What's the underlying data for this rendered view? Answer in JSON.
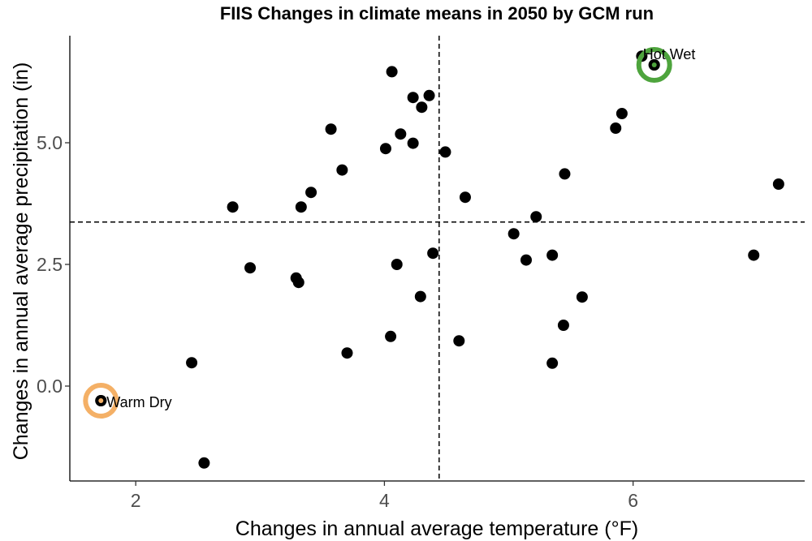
{
  "chart_data": {
    "type": "scatter",
    "title": "FIIS Changes in climate means in 2050 by GCM run",
    "xlabel": "Changes in annual average temperature (°F)",
    "ylabel": "Changes in annual average precipitation (in)",
    "xlim": [
      1.47,
      7.38
    ],
    "ylim": [
      -1.95,
      7.2
    ],
    "x_ticks": [
      2,
      4,
      6
    ],
    "x_tick_labels": [
      "2",
      "4",
      "6"
    ],
    "y_ticks": [
      0,
      2.5,
      5
    ],
    "y_tick_labels": [
      "0.0",
      "2.5",
      "5.0"
    ],
    "grid": false,
    "reference_lines": {
      "x": 4.44,
      "y": 3.37
    },
    "points": [
      {
        "x": 1.72,
        "y": -0.3
      },
      {
        "x": 2.45,
        "y": 0.48
      },
      {
        "x": 2.55,
        "y": -1.58
      },
      {
        "x": 2.78,
        "y": 3.68
      },
      {
        "x": 2.92,
        "y": 2.43
      },
      {
        "x": 3.29,
        "y": 2.22
      },
      {
        "x": 3.31,
        "y": 2.13
      },
      {
        "x": 3.33,
        "y": 3.68
      },
      {
        "x": 3.41,
        "y": 3.98
      },
      {
        "x": 3.57,
        "y": 5.28
      },
      {
        "x": 3.66,
        "y": 4.44
      },
      {
        "x": 3.7,
        "y": 0.68
      },
      {
        "x": 4.01,
        "y": 4.88
      },
      {
        "x": 4.05,
        "y": 1.02
      },
      {
        "x": 4.06,
        "y": 6.46
      },
      {
        "x": 4.1,
        "y": 2.5
      },
      {
        "x": 4.13,
        "y": 5.18
      },
      {
        "x": 4.23,
        "y": 4.99
      },
      {
        "x": 4.23,
        "y": 5.93
      },
      {
        "x": 4.29,
        "y": 1.84
      },
      {
        "x": 4.3,
        "y": 5.73
      },
      {
        "x": 4.36,
        "y": 5.97
      },
      {
        "x": 4.39,
        "y": 2.73
      },
      {
        "x": 4.49,
        "y": 4.81
      },
      {
        "x": 4.6,
        "y": 0.93
      },
      {
        "x": 4.65,
        "y": 3.88
      },
      {
        "x": 5.04,
        "y": 3.13
      },
      {
        "x": 5.14,
        "y": 2.59
      },
      {
        "x": 5.22,
        "y": 3.48
      },
      {
        "x": 5.35,
        "y": 0.47
      },
      {
        "x": 5.35,
        "y": 2.69
      },
      {
        "x": 5.44,
        "y": 1.25
      },
      {
        "x": 5.45,
        "y": 4.36
      },
      {
        "x": 5.59,
        "y": 1.83
      },
      {
        "x": 5.86,
        "y": 5.3
      },
      {
        "x": 5.91,
        "y": 5.6
      },
      {
        "x": 6.07,
        "y": 6.78
      },
      {
        "x": 6.17,
        "y": 6.6
      },
      {
        "x": 6.97,
        "y": 2.69
      },
      {
        "x": 7.17,
        "y": 4.15
      }
    ],
    "highlights": [
      {
        "label": "Warm Dry",
        "x": 1.72,
        "y": -0.3,
        "ring_color": "#f4b066",
        "dot_color": "#f4b066"
      },
      {
        "label": "Hot Wet",
        "x": 6.17,
        "y": 6.6,
        "ring_color": "#4ea43d",
        "dot_color": "#4ea43d"
      }
    ]
  }
}
